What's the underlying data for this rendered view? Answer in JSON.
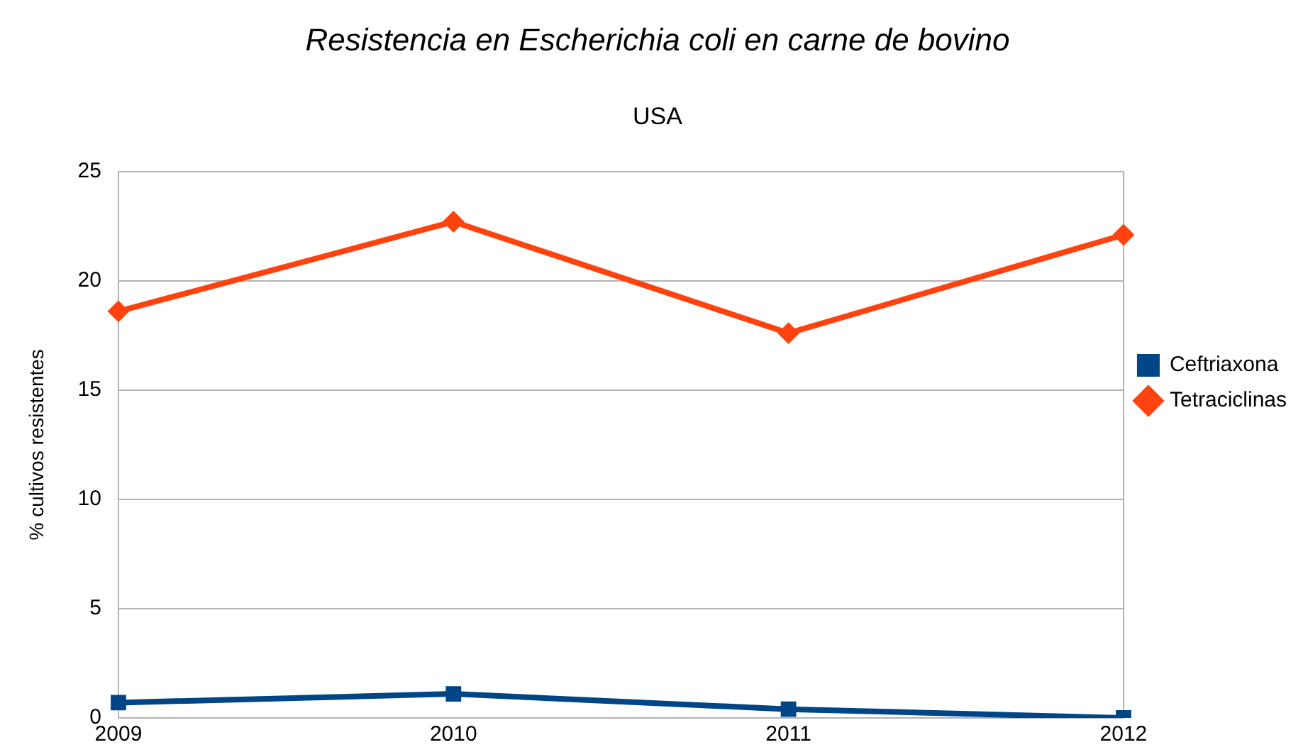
{
  "chart_data": {
    "type": "line",
    "title": "Resistencia en Escherichia coli en carne de bovino",
    "subtitle": "USA",
    "ylabel": "% cultivos resistentes",
    "categories": [
      "2009",
      "2010",
      "2011",
      "2012"
    ],
    "series": [
      {
        "name": "Ceftriaxona",
        "color": "#004586",
        "marker": "square",
        "values": [
          0.7,
          1.1,
          0.4,
          0
        ]
      },
      {
        "name": "Tetraciclinas",
        "color": "#ff420e",
        "marker": "diamond",
        "values": [
          18.6,
          22.7,
          17.6,
          22.1
        ]
      }
    ],
    "ylim": [
      0,
      25
    ],
    "yticks": [
      0,
      5,
      10,
      15,
      20,
      25
    ],
    "grid": "y",
    "legend": "right",
    "line_style": "solid"
  }
}
